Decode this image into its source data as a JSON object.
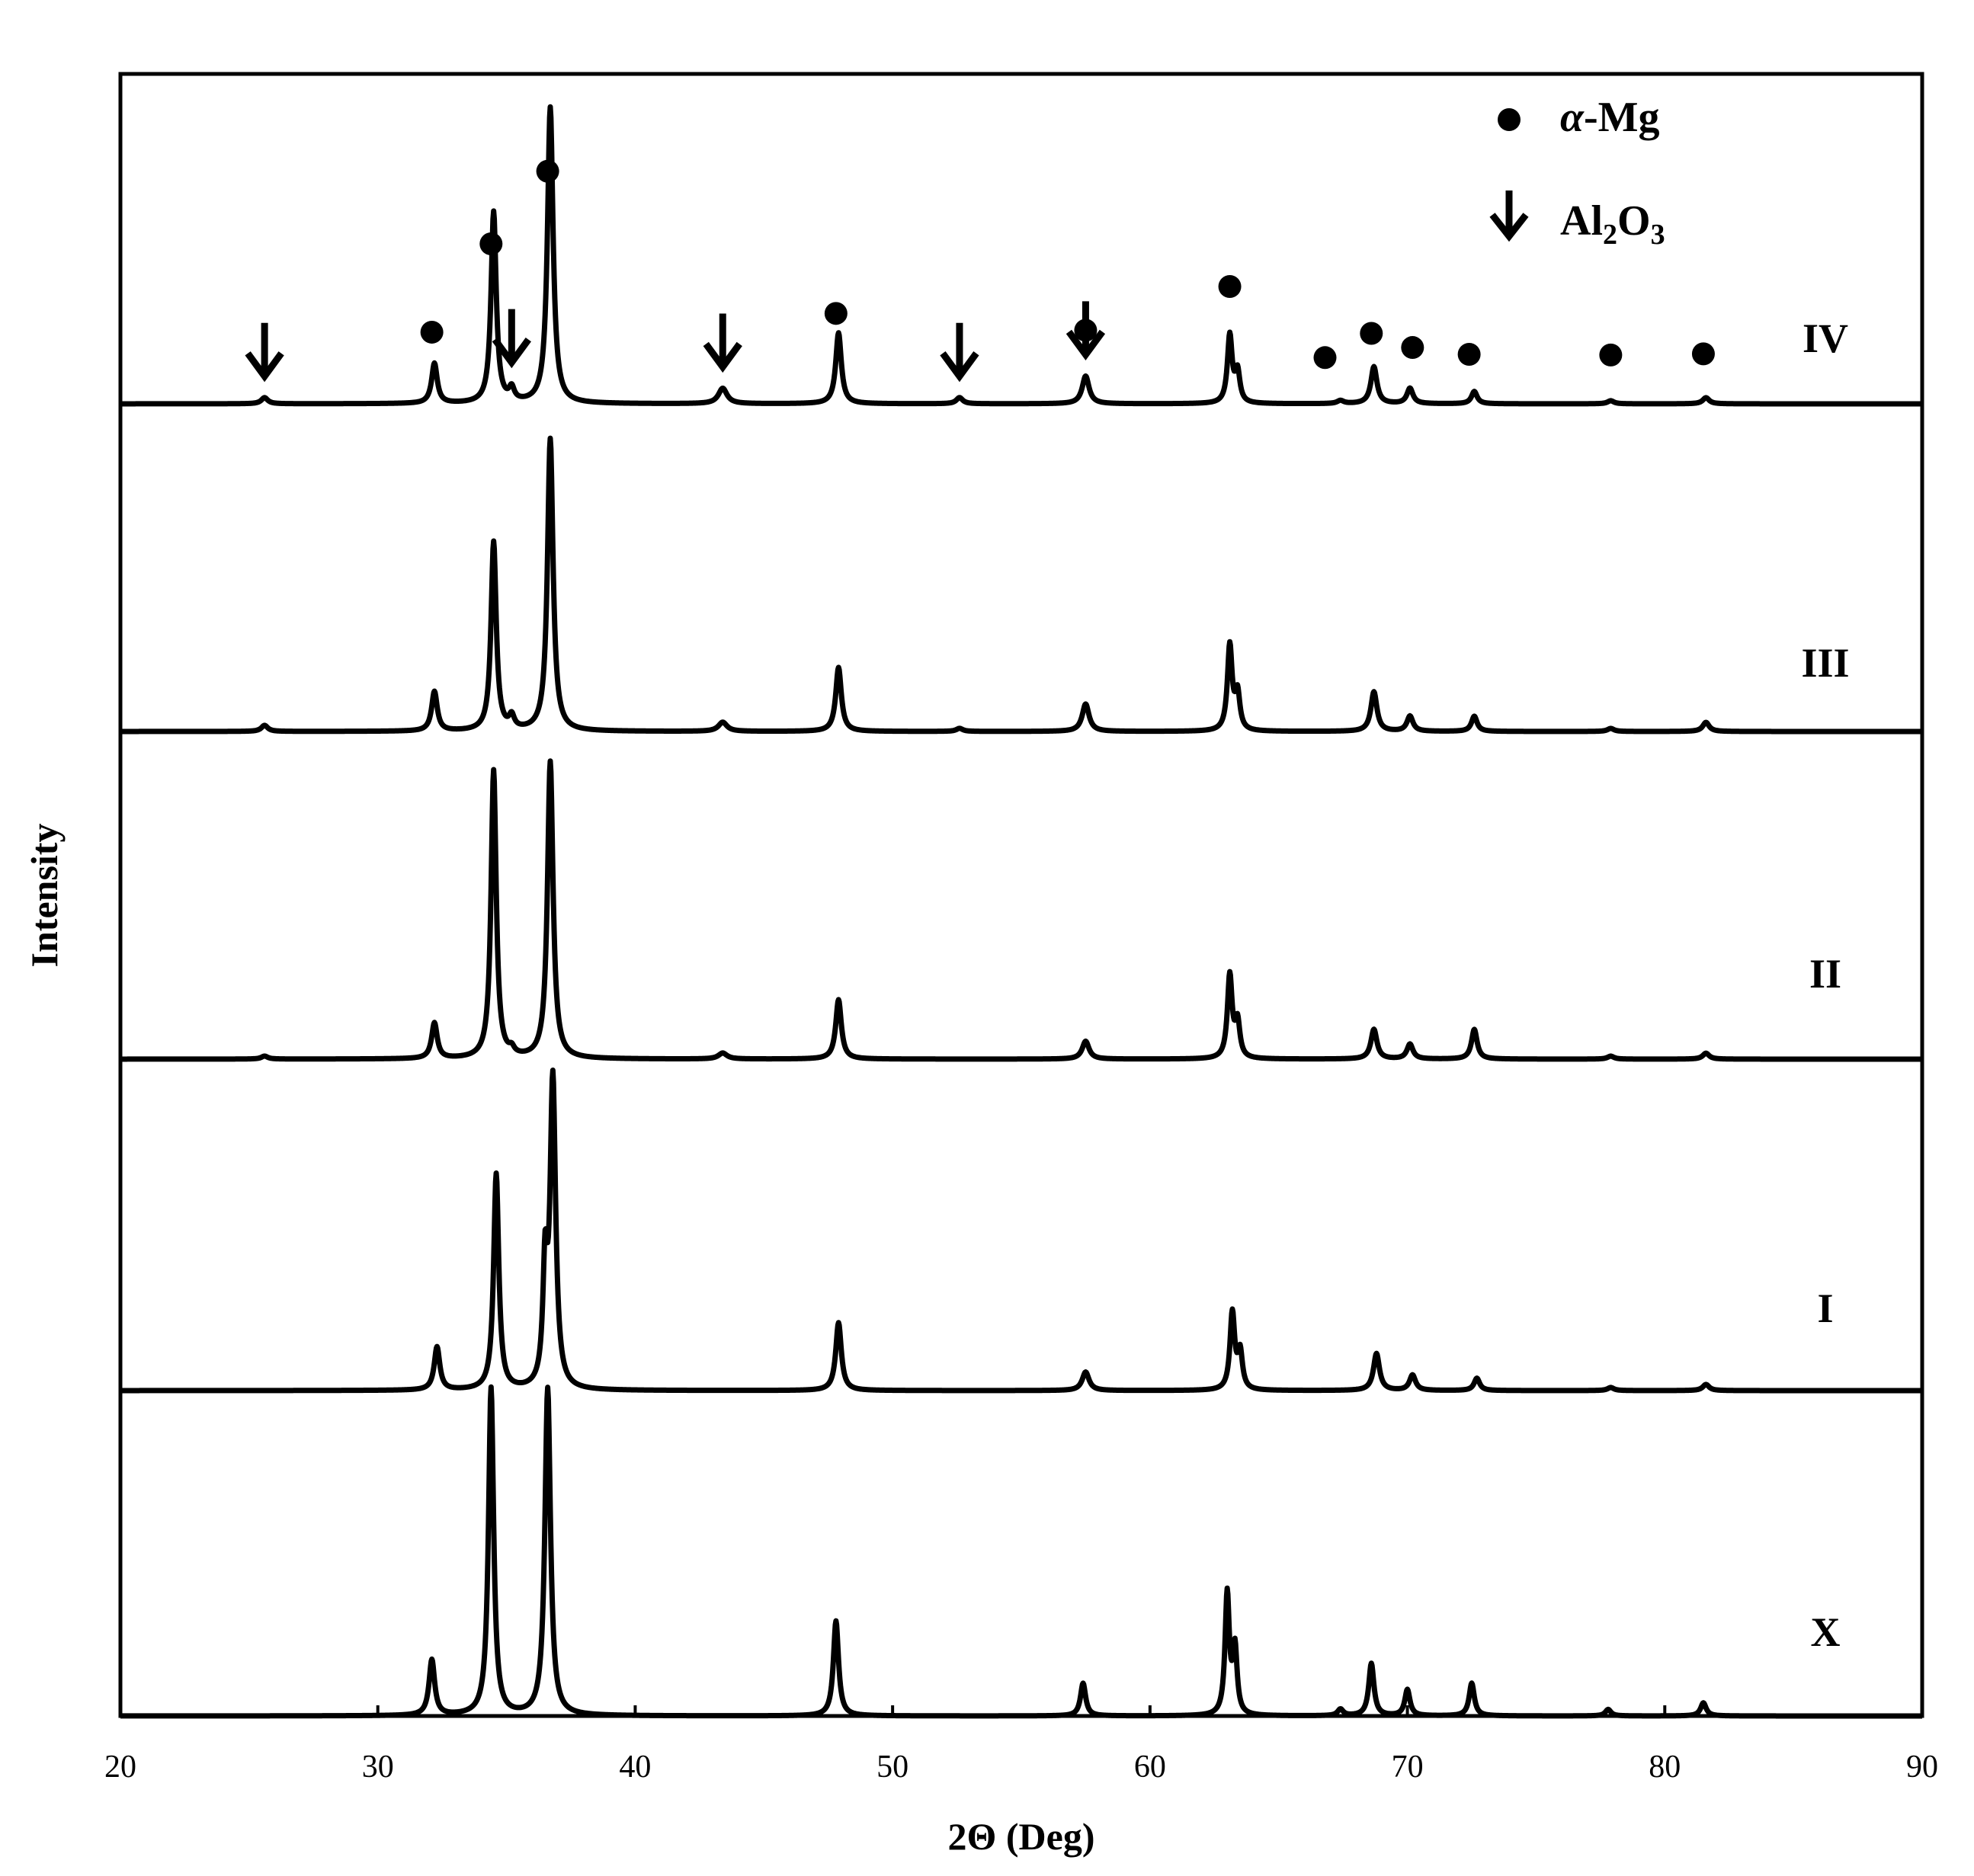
{
  "chart_data": {
    "type": "line",
    "title": "",
    "xlabel": "2Θ (Deg)",
    "ylabel": "Intensity",
    "xlim": [
      20,
      90
    ],
    "xticks": [
      20,
      30,
      40,
      50,
      60,
      70,
      80,
      90
    ],
    "grid": false,
    "legend_position": "top-right",
    "legend": [
      {
        "symbol": "dot",
        "label_italic": "α",
        "label_rest": "-Mg"
      },
      {
        "symbol": "arrow",
        "label": "Al",
        "sub1": "2",
        "mid": "O",
        "sub2": "3"
      }
    ],
    "series": [
      {
        "name": "IV",
        "peaks": [
          {
            "x": 25.6,
            "y": 0.02,
            "w": 0.15
          },
          {
            "x": 32.2,
            "y": 0.13,
            "w": 0.13
          },
          {
            "x": 34.5,
            "y": 0.62,
            "w": 0.12
          },
          {
            "x": 35.2,
            "y": 0.04,
            "w": 0.12
          },
          {
            "x": 36.7,
            "y": 0.96,
            "w": 0.13
          },
          {
            "x": 43.4,
            "y": 0.05,
            "w": 0.2
          },
          {
            "x": 47.9,
            "y": 0.23,
            "w": 0.13
          },
          {
            "x": 52.6,
            "y": 0.02,
            "w": 0.15
          },
          {
            "x": 57.5,
            "y": 0.09,
            "w": 0.16
          },
          {
            "x": 63.1,
            "y": 0.22,
            "w": 0.11
          },
          {
            "x": 63.4,
            "y": 0.1,
            "w": 0.11
          },
          {
            "x": 67.4,
            "y": 0.01,
            "w": 0.15
          },
          {
            "x": 68.7,
            "y": 0.12,
            "w": 0.14
          },
          {
            "x": 70.1,
            "y": 0.05,
            "w": 0.14
          },
          {
            "x": 72.6,
            "y": 0.04,
            "w": 0.13
          },
          {
            "x": 77.9,
            "y": 0.01,
            "w": 0.15
          },
          {
            "x": 81.6,
            "y": 0.02,
            "w": 0.15
          }
        ]
      },
      {
        "name": "III",
        "peaks": [
          {
            "x": 25.6,
            "y": 0.02,
            "w": 0.15
          },
          {
            "x": 32.2,
            "y": 0.13,
            "w": 0.13
          },
          {
            "x": 34.5,
            "y": 0.62,
            "w": 0.12
          },
          {
            "x": 35.2,
            "y": 0.04,
            "w": 0.12
          },
          {
            "x": 36.7,
            "y": 0.96,
            "w": 0.13
          },
          {
            "x": 43.4,
            "y": 0.03,
            "w": 0.2
          },
          {
            "x": 47.9,
            "y": 0.21,
            "w": 0.13
          },
          {
            "x": 52.6,
            "y": 0.01,
            "w": 0.15
          },
          {
            "x": 57.5,
            "y": 0.09,
            "w": 0.16
          },
          {
            "x": 63.1,
            "y": 0.28,
            "w": 0.11
          },
          {
            "x": 63.4,
            "y": 0.12,
            "w": 0.11
          },
          {
            "x": 68.7,
            "y": 0.13,
            "w": 0.14
          },
          {
            "x": 70.1,
            "y": 0.05,
            "w": 0.14
          },
          {
            "x": 72.6,
            "y": 0.05,
            "w": 0.13
          },
          {
            "x": 77.9,
            "y": 0.01,
            "w": 0.15
          },
          {
            "x": 81.6,
            "y": 0.03,
            "w": 0.15
          }
        ]
      },
      {
        "name": "II",
        "peaks": [
          {
            "x": 25.6,
            "y": 0.01,
            "w": 0.15
          },
          {
            "x": 32.2,
            "y": 0.12,
            "w": 0.13
          },
          {
            "x": 34.5,
            "y": 0.97,
            "w": 0.12
          },
          {
            "x": 35.2,
            "y": 0.02,
            "w": 0.12
          },
          {
            "x": 36.7,
            "y": 1.0,
            "w": 0.13
          },
          {
            "x": 43.4,
            "y": 0.02,
            "w": 0.2
          },
          {
            "x": 47.9,
            "y": 0.2,
            "w": 0.13
          },
          {
            "x": 57.5,
            "y": 0.06,
            "w": 0.16
          },
          {
            "x": 63.1,
            "y": 0.28,
            "w": 0.11
          },
          {
            "x": 63.4,
            "y": 0.12,
            "w": 0.11
          },
          {
            "x": 68.7,
            "y": 0.1,
            "w": 0.14
          },
          {
            "x": 70.1,
            "y": 0.05,
            "w": 0.14
          },
          {
            "x": 72.6,
            "y": 0.1,
            "w": 0.13
          },
          {
            "x": 77.9,
            "y": 0.01,
            "w": 0.15
          },
          {
            "x": 81.6,
            "y": 0.02,
            "w": 0.15
          }
        ]
      },
      {
        "name": "I",
        "peaks": [
          {
            "x": 32.3,
            "y": 0.14,
            "w": 0.13
          },
          {
            "x": 34.6,
            "y": 0.7,
            "w": 0.12
          },
          {
            "x": 36.5,
            "y": 0.36,
            "w": 0.1
          },
          {
            "x": 36.8,
            "y": 1.0,
            "w": 0.13
          },
          {
            "x": 47.9,
            "y": 0.22,
            "w": 0.13
          },
          {
            "x": 57.5,
            "y": 0.06,
            "w": 0.16
          },
          {
            "x": 63.2,
            "y": 0.25,
            "w": 0.11
          },
          {
            "x": 63.5,
            "y": 0.12,
            "w": 0.11
          },
          {
            "x": 68.8,
            "y": 0.12,
            "w": 0.14
          },
          {
            "x": 70.2,
            "y": 0.05,
            "w": 0.14
          },
          {
            "x": 72.7,
            "y": 0.04,
            "w": 0.13
          },
          {
            "x": 77.9,
            "y": 0.01,
            "w": 0.15
          },
          {
            "x": 81.6,
            "y": 0.02,
            "w": 0.15
          }
        ]
      },
      {
        "name": "X",
        "peaks": [
          {
            "x": 32.1,
            "y": 0.17,
            "w": 0.13
          },
          {
            "x": 34.4,
            "y": 1.0,
            "w": 0.12
          },
          {
            "x": 36.6,
            "y": 1.0,
            "w": 0.13
          },
          {
            "x": 47.8,
            "y": 0.29,
            "w": 0.12
          },
          {
            "x": 57.4,
            "y": 0.1,
            "w": 0.12
          },
          {
            "x": 63.0,
            "y": 0.37,
            "w": 0.1
          },
          {
            "x": 63.3,
            "y": 0.2,
            "w": 0.1
          },
          {
            "x": 67.4,
            "y": 0.02,
            "w": 0.13
          },
          {
            "x": 68.6,
            "y": 0.16,
            "w": 0.12
          },
          {
            "x": 70.0,
            "y": 0.08,
            "w": 0.12
          },
          {
            "x": 72.5,
            "y": 0.1,
            "w": 0.12
          },
          {
            "x": 77.8,
            "y": 0.02,
            "w": 0.13
          },
          {
            "x": 81.5,
            "y": 0.04,
            "w": 0.13
          }
        ]
      }
    ],
    "markers_mg_x": [
      32.1,
      34.4,
      36.6,
      47.8,
      57.5,
      63.1,
      66.8,
      68.6,
      70.2,
      72.4,
      77.9,
      81.5
    ],
    "markers_al2o3_x": [
      25.6,
      35.2,
      43.4,
      52.6,
      57.5
    ]
  }
}
